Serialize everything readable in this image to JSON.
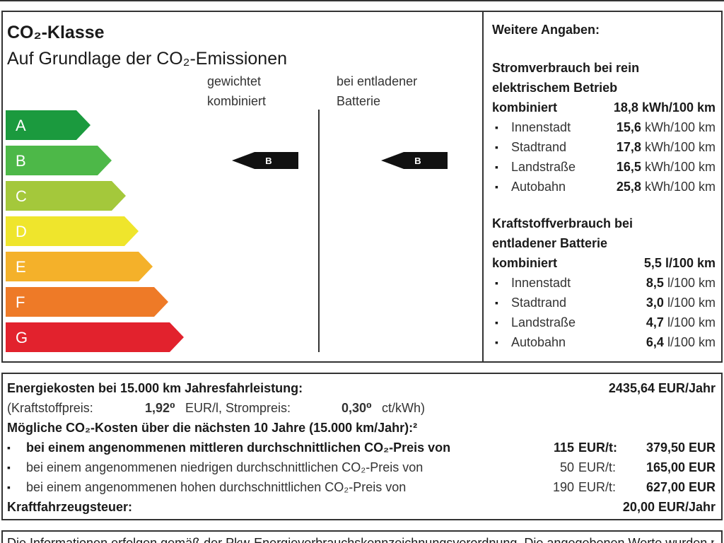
{
  "co2_class": {
    "title": "CO₂-Klasse",
    "subtitle": "Auf Grundlage der CO₂-Emissionen",
    "columns": [
      [
        "gewichtet",
        "kombiniert"
      ],
      [
        "bei entladener",
        "Batterie"
      ]
    ],
    "classes": [
      "A",
      "B",
      "C",
      "D",
      "E",
      "F",
      "G"
    ],
    "weighted_class": "B",
    "discharged_class": "B"
  },
  "details": {
    "title": "Weitere Angaben:",
    "power": {
      "heading": [
        "Stromverbrauch bei rein",
        "elektrischem Betrieb"
      ],
      "combined_label": "kombiniert",
      "combined_value": "18,8 kWh/100 km",
      "items": [
        {
          "label": "Innenstadt",
          "value": "15,6",
          "unit": "kWh/100 km"
        },
        {
          "label": "Stadtrand",
          "value": "17,8",
          "unit": "kWh/100 km"
        },
        {
          "label": "Landstraße",
          "value": "16,5",
          "unit": "kWh/100 km"
        },
        {
          "label": "Autobahn",
          "value": "25,8",
          "unit": "kWh/100 km"
        }
      ]
    },
    "fuel": {
      "heading": [
        "Kraftstoffverbrauch bei",
        "entladener Batterie"
      ],
      "combined_label": "kombiniert",
      "combined_value": "5,5 l/100 km",
      "items": [
        {
          "label": "Innenstadt",
          "value": "8,5",
          "unit": "l/100 km"
        },
        {
          "label": "Stadtrand",
          "value": "3,0",
          "unit": "l/100 km"
        },
        {
          "label": "Landstraße",
          "value": "4,7",
          "unit": "l/100 km"
        },
        {
          "label": "Autobahn",
          "value": "6,4",
          "unit": "l/100 km"
        }
      ]
    }
  },
  "costs": {
    "energy_label": "Energiekosten bei 15.000 km Jahresfahrleistung:",
    "energy_value": "2435,64 EUR/Jahr",
    "prices": [
      "(Kraftstoffpreis:",
      "1,92⁰",
      "EUR/l, Strompreis:",
      "0,30⁰",
      "ct/kWh)"
    ],
    "co2_title": "Mögliche CO₂-Kosten über die nächsten 10 Jahre (15.000 km/Jahr):²",
    "co2_rows": [
      {
        "text": "bei einem angenommenen mittleren durchschnittlichen CO₂-Preis von",
        "price": "115",
        "unit": "EUR/t:",
        "amount": "379,50 EUR"
      },
      {
        "text": "bei einem angenommenen niedrigen durchschnittlichen CO₂-Preis von",
        "price": "50",
        "unit": "EUR/t:",
        "amount": "165,00 EUR"
      },
      {
        "text": "bei einem angenommenen hohen durchschnittlichen CO₂-Preis von",
        "price": "190",
        "unit": "EUR/t:",
        "amount": "627,00 EUR"
      }
    ],
    "tax_label": "Kraftfahrzeugsteuer:",
    "tax_value": "20,00 EUR/Jahr"
  },
  "footer": "Die Informationen erfolgen gemäß der Pkw-Energieverbrauchskennzeichnungsverordnung. Die angegebenen Werte wurden nach dem"
}
